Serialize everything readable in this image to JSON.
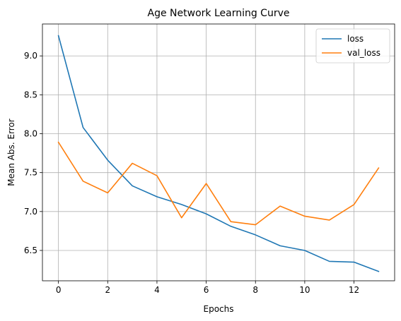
{
  "chart_data": {
    "type": "line",
    "title": "Age Network Learning Curve",
    "xlabel": "Epochs",
    "ylabel": "Mean Abs. Error",
    "x": [
      0,
      1,
      2,
      3,
      4,
      5,
      6,
      7,
      8,
      9,
      10,
      11,
      12,
      13
    ],
    "xlim": [
      -0.65,
      13.65
    ],
    "ylim": [
      6.11,
      9.41
    ],
    "xticks": [
      0,
      2,
      4,
      6,
      8,
      10,
      12
    ],
    "xtick_labels": [
      "0",
      "2",
      "4",
      "6",
      "8",
      "10",
      "12"
    ],
    "yticks": [
      6.5,
      7.0,
      7.5,
      8.0,
      8.5,
      9.0
    ],
    "ytick_labels": [
      "6.5",
      "7.0",
      "7.5",
      "8.0",
      "8.5",
      "9.0"
    ],
    "grid": true,
    "legend_position": "top-right",
    "series": [
      {
        "name": "loss",
        "color": "#1f77b4",
        "values": [
          9.26,
          8.08,
          7.66,
          7.33,
          7.19,
          7.09,
          6.97,
          6.81,
          6.7,
          6.56,
          6.5,
          6.36,
          6.35,
          6.23
        ]
      },
      {
        "name": "val_loss",
        "color": "#ff7f0e",
        "values": [
          7.89,
          7.39,
          7.24,
          7.62,
          7.46,
          6.92,
          7.36,
          6.87,
          6.83,
          7.07,
          6.94,
          6.89,
          7.09,
          7.56
        ]
      }
    ]
  }
}
